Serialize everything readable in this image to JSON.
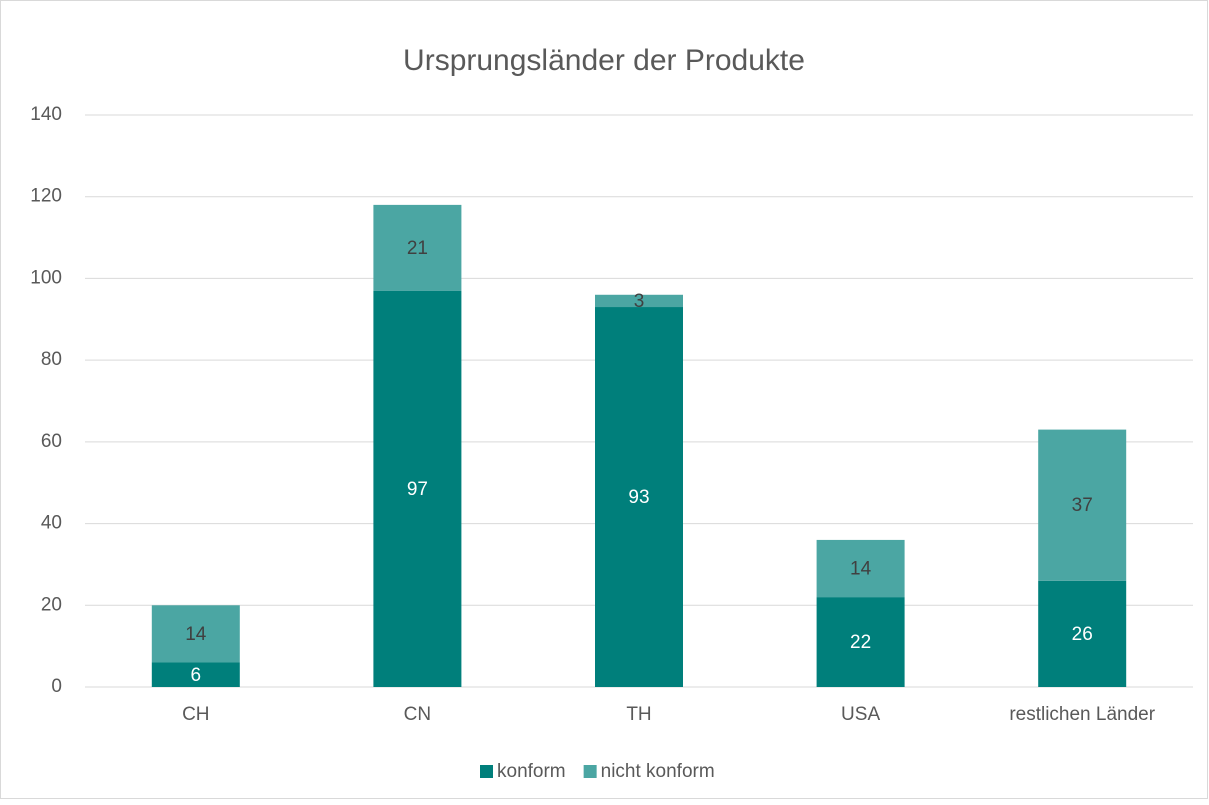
{
  "chart_data": {
    "type": "stacked_bar",
    "title": "Ursprungsländer der Produkte",
    "categories": [
      "CH",
      "CN",
      "TH",
      "USA",
      "restlichen Länder"
    ],
    "series": [
      {
        "name": "konform",
        "color": "#007f7b",
        "label_color": "#ffffff",
        "values": [
          6,
          97,
          93,
          22,
          26
        ]
      },
      {
        "name": "nicht konform",
        "color": "#4ba6a3",
        "label_color": "#404040",
        "values": [
          14,
          21,
          3,
          14,
          37
        ]
      }
    ],
    "ylim": [
      0,
      140
    ],
    "yticks": [
      0,
      20,
      40,
      60,
      80,
      100,
      120,
      140
    ],
    "grid": true,
    "legend": "bottom"
  }
}
